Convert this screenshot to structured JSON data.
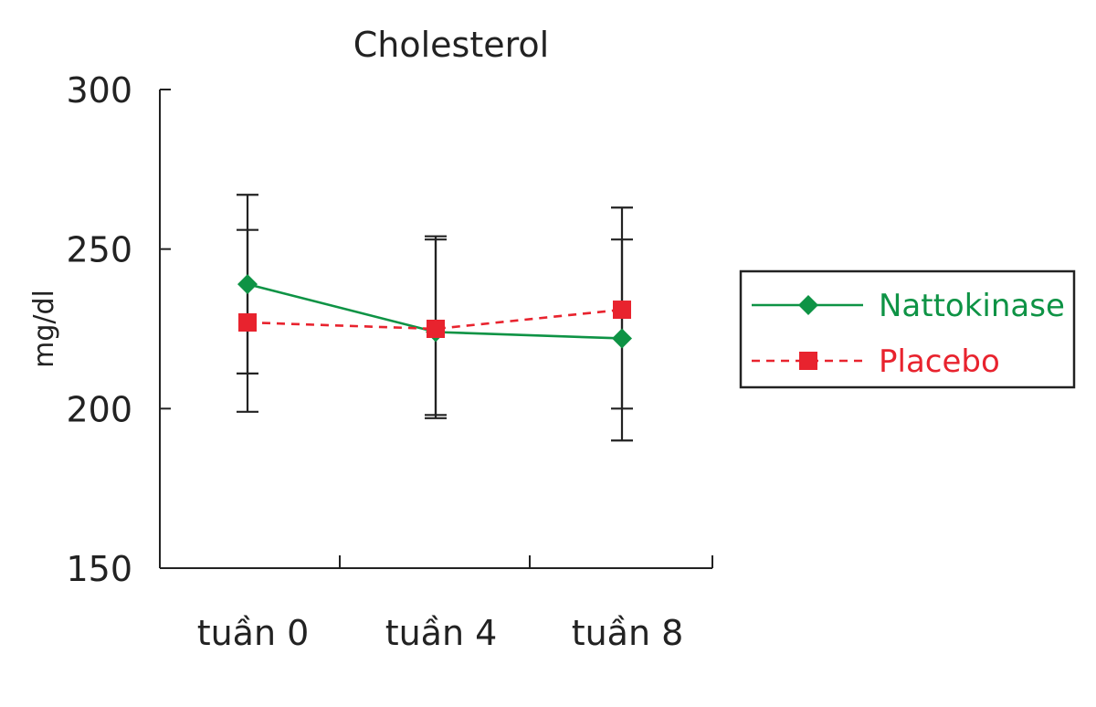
{
  "chart_data": {
    "type": "line",
    "title": "Cholesterol",
    "ylabel": "mg/dl",
    "xlabel": "",
    "categories": [
      "tuần 0",
      "tuần 4",
      "tuần 8"
    ],
    "ylim": [
      150,
      300
    ],
    "yticks": [
      150,
      200,
      250,
      300
    ],
    "grid": false,
    "legend_position": "right",
    "series": [
      {
        "name": "Nattokinase",
        "color": "#0e9345",
        "line_style": "solid",
        "marker": "diamond",
        "values": [
          239,
          224,
          222
        ],
        "error_low": [
          199,
          197,
          190
        ],
        "error_high": [
          267,
          254,
          263
        ]
      },
      {
        "name": "Placebo",
        "color": "#e8232e",
        "line_style": "dashed",
        "marker": "square",
        "values": [
          227,
          225,
          231
        ],
        "error_low": [
          211,
          198,
          200
        ],
        "error_high": [
          256,
          253,
          253
        ]
      }
    ]
  }
}
